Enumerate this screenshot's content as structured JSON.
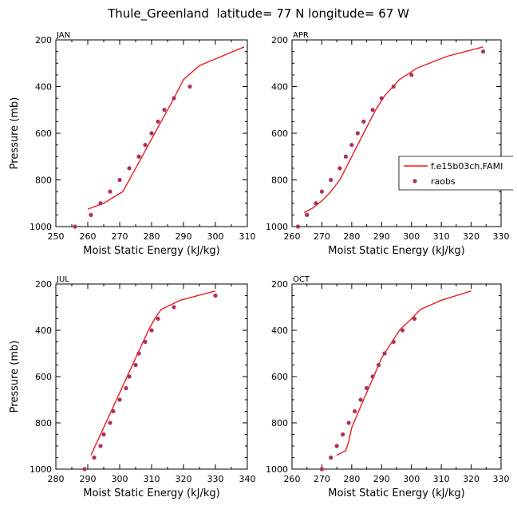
{
  "page_title": "Thule_Greenland  latitude= 77 N longitude= 67 W",
  "legend": {
    "model_label": "f.e15b03ch.FAMI",
    "obs_label": "raobs"
  },
  "colors": {
    "model": "#ee1c1c",
    "obs": "#b03060",
    "axis": "#000000"
  },
  "chart_data": [
    {
      "type": "line",
      "panel": "JAN",
      "xlabel": "Moist Static Energy (kJ/kg)",
      "ylabel": "Pressure (mb)",
      "xlim": [
        250,
        310
      ],
      "ylim": [
        1000,
        200
      ],
      "xticks": [
        250,
        260,
        270,
        280,
        290,
        300,
        310
      ],
      "yticks": [
        200,
        400,
        600,
        800,
        1000
      ],
      "series": [
        {
          "name": "f.e15b03ch.FAMI",
          "kind": "line",
          "x": [
            260,
            265,
            268,
            271,
            273,
            275,
            277,
            279,
            281,
            283,
            285,
            287,
            290,
            295,
            302,
            309
          ],
          "y": [
            925,
            900,
            875,
            850,
            800,
            750,
            700,
            650,
            600,
            550,
            500,
            450,
            370,
            310,
            270,
            230
          ]
        },
        {
          "name": "raobs",
          "kind": "scatter",
          "x": [
            256,
            261,
            264,
            267,
            270,
            273,
            276,
            278,
            280,
            282,
            284,
            287,
            292
          ],
          "y": [
            1000,
            950,
            900,
            850,
            800,
            750,
            700,
            650,
            600,
            550,
            500,
            450,
            400
          ]
        }
      ]
    },
    {
      "type": "line",
      "panel": "APR",
      "xlabel": "Moist Static Energy (kJ/kg)",
      "ylabel": "",
      "xlim": [
        260,
        330
      ],
      "ylim": [
        1000,
        200
      ],
      "xticks": [
        260,
        270,
        280,
        290,
        300,
        310,
        320,
        330
      ],
      "yticks": [
        200,
        400,
        600,
        800,
        1000
      ],
      "series": [
        {
          "name": "f.e15b03ch.FAMI",
          "kind": "line",
          "x": [
            264,
            267,
            270,
            273,
            276,
            278,
            280,
            282,
            284,
            286,
            288,
            291,
            296,
            302,
            312,
            324
          ],
          "y": [
            940,
            920,
            890,
            850,
            800,
            750,
            700,
            650,
            600,
            550,
            500,
            440,
            370,
            320,
            270,
            230
          ]
        },
        {
          "name": "raobs",
          "kind": "scatter",
          "x": [
            262,
            265,
            268,
            270,
            273,
            276,
            278,
            280,
            282,
            284,
            287,
            290,
            294,
            300,
            324
          ],
          "y": [
            1000,
            950,
            900,
            850,
            800,
            750,
            700,
            650,
            600,
            550,
            500,
            450,
            400,
            350,
            250
          ]
        }
      ]
    },
    {
      "type": "line",
      "panel": "JUL",
      "xlabel": "Moist Static Energy (kJ/kg)",
      "ylabel": "Pressure (mb)",
      "xlim": [
        280,
        340
      ],
      "ylim": [
        1000,
        200
      ],
      "xticks": [
        280,
        290,
        300,
        310,
        320,
        330,
        340
      ],
      "yticks": [
        200,
        400,
        600,
        800,
        1000
      ],
      "series": [
        {
          "name": "f.e15b03ch.FAMI",
          "kind": "line",
          "x": [
            291,
            293,
            295,
            297,
            299,
            301,
            303,
            305,
            307,
            309,
            311,
            313,
            319,
            330
          ],
          "y": [
            940,
            880,
            820,
            760,
            700,
            640,
            580,
            520,
            460,
            400,
            350,
            310,
            270,
            230
          ]
        },
        {
          "name": "raobs",
          "kind": "scatter",
          "x": [
            289,
            292,
            294,
            295,
            297,
            298,
            300,
            302,
            303,
            305,
            306,
            308,
            310,
            312,
            317,
            330
          ],
          "y": [
            1000,
            950,
            900,
            850,
            800,
            750,
            700,
            650,
            600,
            550,
            500,
            450,
            400,
            350,
            300,
            250
          ]
        }
      ]
    },
    {
      "type": "line",
      "panel": "OCT",
      "xlabel": "Moist Static Energy (kJ/kg)",
      "ylabel": "",
      "xlim": [
        260,
        330
      ],
      "ylim": [
        1000,
        200
      ],
      "xticks": [
        260,
        270,
        280,
        290,
        300,
        310,
        320,
        330
      ],
      "yticks": [
        200,
        400,
        600,
        800,
        1000
      ],
      "series": [
        {
          "name": "f.e15b03ch.FAMI",
          "kind": "line",
          "x": [
            275,
            278,
            279,
            280,
            282,
            284,
            286,
            288,
            290,
            293,
            296,
            300,
            303,
            310,
            320
          ],
          "y": [
            940,
            920,
            880,
            820,
            760,
            700,
            640,
            580,
            520,
            460,
            400,
            350,
            310,
            270,
            230
          ]
        },
        {
          "name": "raobs",
          "kind": "scatter",
          "x": [
            270,
            273,
            275,
            277,
            279,
            281,
            283,
            285,
            287,
            289,
            291,
            294,
            297,
            301
          ],
          "y": [
            1000,
            950,
            900,
            850,
            800,
            750,
            700,
            650,
            600,
            550,
            500,
            450,
            400,
            350
          ]
        }
      ]
    }
  ]
}
